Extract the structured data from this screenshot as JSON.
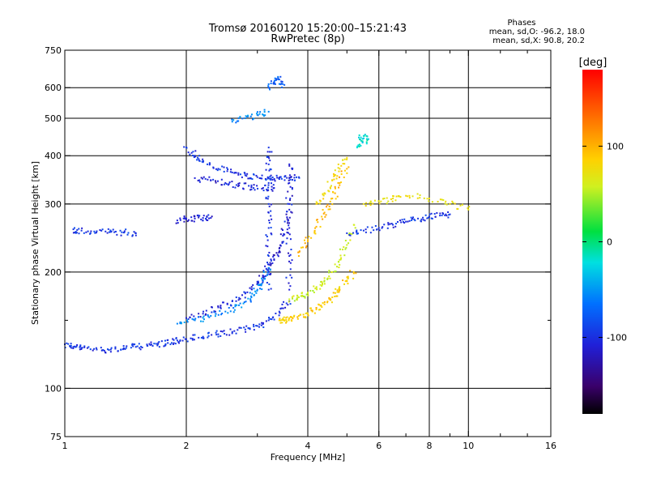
{
  "chart_data": {
    "type": "scatter",
    "title": "Tromsø 20160120 15:20:00–15:21:43",
    "subtitle": "RwPretec (8p)",
    "xlabel": "Frequency [MHz]",
    "ylabel": "Stationary phase Virtual Height [km]",
    "x_scale": "log",
    "y_scale": "log",
    "xlim": [
      1,
      16
    ],
    "ylim": [
      75,
      750
    ],
    "x_ticks": [
      1,
      2,
      4,
      6,
      8,
      10,
      16
    ],
    "x_minor_ticks": [
      3,
      5,
      7,
      9,
      12,
      14
    ],
    "y_ticks": [
      75,
      100,
      200,
      300,
      400,
      500,
      600,
      750
    ],
    "y_minor_ticks": [
      150
    ],
    "x_gridlines": [
      2,
      4,
      6,
      8,
      10
    ],
    "y_gridlines": [
      100,
      200,
      300,
      400,
      500,
      600
    ],
    "grid": true,
    "legend": {
      "title": "Phases",
      "lines": [
        "mean, sd,O: -96.2, 18.0",
        "mean, sd,X:  90.8, 20.2"
      ],
      "position": "top-right"
    },
    "colorbar": {
      "label": "[deg]",
      "range": [
        -180,
        180
      ],
      "ticks": [
        100,
        0,
        -100
      ],
      "colormap": "rainbow"
    },
    "traces": [
      {
        "x": [
          1.0,
          1.05,
          1.1,
          1.2,
          1.3,
          1.4,
          1.5,
          1.6,
          1.7,
          1.8,
          1.9,
          2.0,
          2.2,
          2.4,
          2.6,
          2.8,
          3.0,
          3.2,
          3.4,
          3.6
        ],
        "y": [
          130,
          128,
          127,
          126,
          126,
          127,
          128,
          129,
          130,
          131,
          133,
          134,
          136,
          138,
          140,
          142,
          145,
          150,
          158,
          168
        ],
        "phase": -100
      },
      {
        "x": [
          2.0,
          2.2,
          2.4,
          2.6,
          2.8,
          3.0,
          3.1,
          3.2,
          3.3,
          3.4,
          3.5,
          3.6
        ],
        "y": [
          152,
          156,
          162,
          168,
          176,
          186,
          194,
          204,
          216,
          230,
          250,
          290
        ],
        "phase": -110
      },
      {
        "x": [
          1.9,
          2.1,
          2.3,
          2.5,
          2.7,
          2.9,
          3.0,
          3.1,
          3.2
        ],
        "y": [
          147,
          150,
          154,
          158,
          164,
          172,
          180,
          190,
          205
        ],
        "phase": -60
      },
      {
        "x": [
          3.4,
          3.5,
          3.6,
          3.8,
          4.0,
          4.2,
          4.4,
          4.6,
          4.8,
          5.0,
          5.2
        ],
        "y": [
          150,
          150,
          152,
          154,
          156,
          160,
          165,
          172,
          180,
          190,
          200
        ],
        "phase": 100
      },
      {
        "x": [
          3.6,
          3.8,
          4.0,
          4.2,
          4.4,
          4.6,
          4.8,
          5.0,
          5.2
        ],
        "y": [
          170,
          172,
          176,
          182,
          190,
          200,
          215,
          235,
          265
        ],
        "phase": 60
      },
      {
        "x": [
          3.8,
          4.0,
          4.2,
          4.4,
          4.6,
          4.8,
          5.0
        ],
        "y": [
          220,
          240,
          262,
          285,
          310,
          340,
          370
        ],
        "phase": 110
      },
      {
        "x": [
          4.2,
          4.4,
          4.6,
          4.8,
          5.0
        ],
        "y": [
          300,
          320,
          345,
          370,
          395
        ],
        "phase": 90
      },
      {
        "x": [
          2.0,
          2.1,
          2.2,
          2.4,
          2.6,
          2.8,
          3.0,
          3.2,
          3.4,
          3.6,
          3.8
        ],
        "y": [
          420,
          400,
          385,
          370,
          362,
          356,
          352,
          350,
          348,
          350,
          352
        ],
        "phase": -100
      },
      {
        "x": [
          2.1,
          2.3,
          2.5,
          2.7,
          2.9,
          3.1,
          3.3
        ],
        "y": [
          350,
          345,
          340,
          335,
          332,
          330,
          330
        ],
        "phase": -110
      },
      {
        "x": [
          1.9,
          2.0,
          2.1,
          2.2,
          2.3
        ],
        "y": [
          272,
          274,
          275,
          276,
          276
        ],
        "phase": -110
      },
      {
        "x": [
          1.05,
          1.1,
          1.2,
          1.3,
          1.4,
          1.5
        ],
        "y": [
          258,
          256,
          255,
          254,
          253,
          252
        ],
        "phase": -100
      },
      {
        "x": [
          3.2,
          3.2,
          3.2,
          3.2,
          3.2,
          3.2,
          3.2
        ],
        "y": [
          180,
          220,
          260,
          300,
          340,
          380,
          420
        ],
        "phase": -100
      },
      {
        "x": [
          3.6,
          3.6,
          3.6,
          3.6,
          3.6,
          3.6
        ],
        "y": [
          180,
          220,
          260,
          300,
          340,
          380
        ],
        "phase": -110
      },
      {
        "x": [
          5.0,
          5.5,
          6.0,
          6.5,
          7.0,
          7.5,
          8.0,
          8.5,
          9.0
        ],
        "y": [
          252,
          256,
          260,
          265,
          270,
          275,
          278,
          280,
          282
        ],
        "phase": -100
      },
      {
        "x": [
          5.3,
          5.4,
          5.5,
          5.6
        ],
        "y": [
          420,
          440,
          450,
          430
        ],
        "phase": -20
      },
      {
        "x": [
          2.6,
          2.8,
          3.0,
          3.2
        ],
        "y": [
          490,
          500,
          510,
          520
        ],
        "phase": -60
      },
      {
        "x": [
          3.2,
          3.3,
          3.4,
          3.5
        ],
        "y": [
          600,
          620,
          630,
          610
        ],
        "phase": -80
      },
      {
        "x": [
          5.5,
          6.0,
          6.5,
          7.0,
          8.0,
          9.0,
          10.0
        ],
        "y": [
          300,
          305,
          310,
          315,
          310,
          300,
          290
        ],
        "phase": 80
      }
    ]
  }
}
